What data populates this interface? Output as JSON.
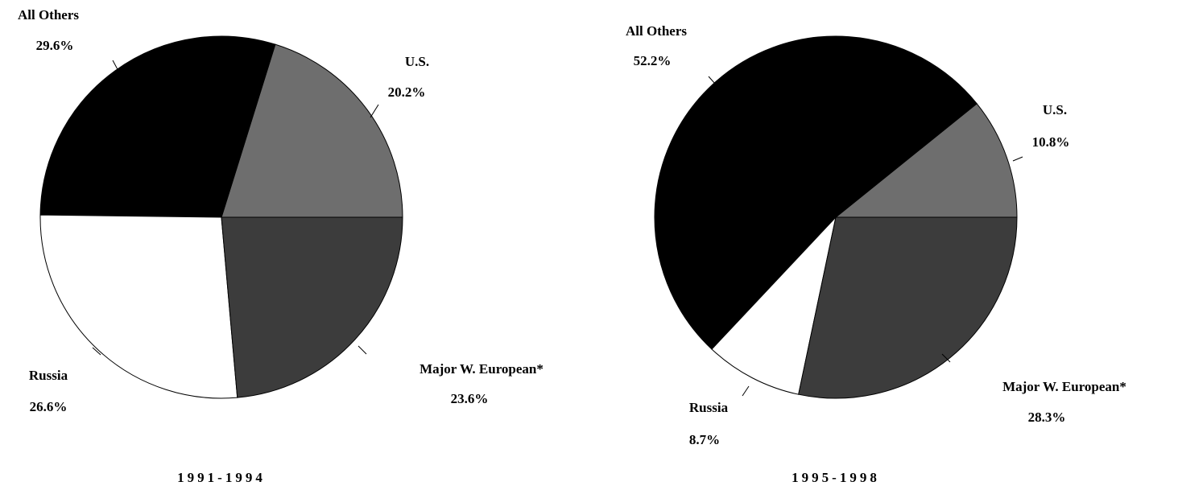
{
  "chart_data": [
    {
      "type": "pie",
      "title": "1991-1994",
      "categories": [
        "U.S.",
        "All Others",
        "Russia",
        "Major W. European*"
      ],
      "values": [
        20.2,
        29.6,
        26.6,
        23.6
      ],
      "value_labels": [
        "20.2%",
        "29.6%",
        "26.6%",
        "23.6%"
      ],
      "colors": [
        "#6e6e6e",
        "#000000",
        "#ffffff",
        "#3c3c3c"
      ]
    },
    {
      "type": "pie",
      "title": "1995-1998",
      "categories": [
        "U.S.",
        "All Others",
        "Russia",
        "Major W. European*"
      ],
      "values": [
        10.8,
        52.2,
        8.7,
        28.3
      ],
      "value_labels": [
        "10.8%",
        "52.2%",
        "8.7%",
        "28.3%"
      ],
      "colors": [
        "#6e6e6e",
        "#000000",
        "#ffffff",
        "#3c3c3c"
      ]
    }
  ]
}
